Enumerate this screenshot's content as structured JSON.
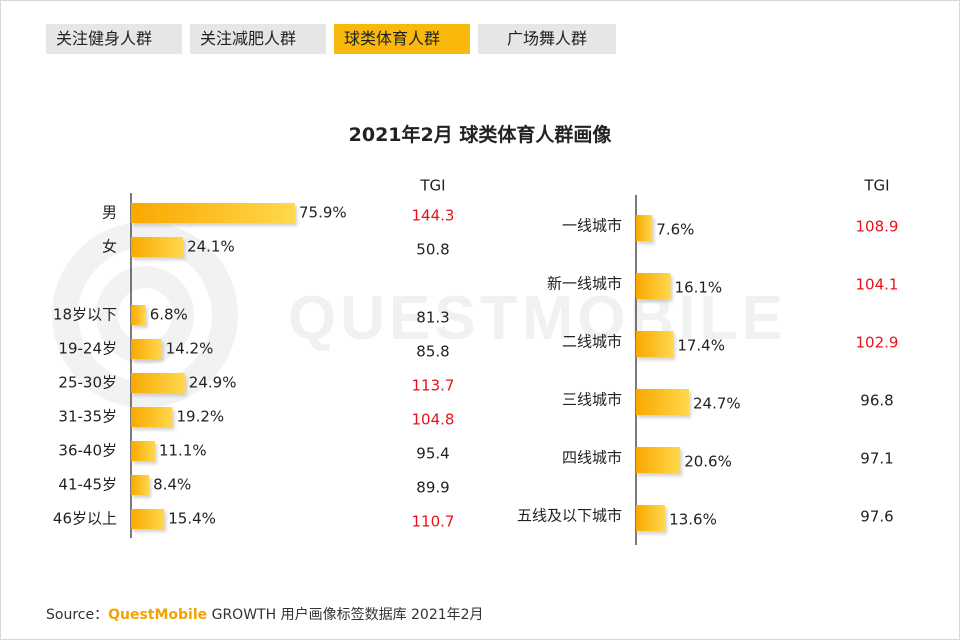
{
  "tabs": [
    {
      "label": "关注健身人群",
      "active": false
    },
    {
      "label": "关注减肥人群",
      "active": false
    },
    {
      "label": "球类体育人群",
      "active": true
    },
    {
      "label": "广场舞人群",
      "active": false
    }
  ],
  "title": "2021年2月 球类体育人群画像",
  "watermark": "QUESTMOBILE",
  "source": {
    "prefix": "Source：",
    "brand": "QuestMobile",
    "text": " GROWTH 用户画像标签数据库 2021年2月"
  },
  "colors": {
    "bar_start": "#f9a800",
    "bar_end": "#ffd84d",
    "tgi_high": "#e8131a",
    "tgi_normal": "#222222",
    "tab_active": "#f9b90c"
  },
  "chart_data": [
    {
      "type": "bar",
      "orientation": "horizontal",
      "tgi_header": "TGI",
      "groups": [
        {
          "categories": [
            "男",
            "女"
          ],
          "values": [
            75.9,
            24.1
          ],
          "labels": [
            "75.9%",
            "24.1%"
          ],
          "tgi": [
            144.3,
            50.8
          ]
        },
        {
          "categories": [
            "18岁以下",
            "19-24岁",
            "25-30岁",
            "31-35岁",
            "36-40岁",
            "41-45岁",
            "46岁以上"
          ],
          "values": [
            6.8,
            14.2,
            24.9,
            19.2,
            11.1,
            8.4,
            15.4
          ],
          "labels": [
            "6.8%",
            "14.2%",
            "24.9%",
            "19.2%",
            "11.1%",
            "8.4%",
            "15.4%"
          ],
          "tgi": [
            81.3,
            85.8,
            113.7,
            104.8,
            95.4,
            89.9,
            110.7
          ]
        }
      ],
      "tgi_highlight_threshold": 100,
      "unit": "%"
    },
    {
      "type": "bar",
      "orientation": "horizontal",
      "tgi_header": "TGI",
      "categories": [
        "一线城市",
        "新一线城市",
        "二线城市",
        "三线城市",
        "四线城市",
        "五线及以下城市"
      ],
      "values": [
        7.6,
        16.1,
        17.4,
        24.7,
        20.6,
        13.6
      ],
      "labels": [
        "7.6%",
        "16.1%",
        "17.4%",
        "24.7%",
        "20.6%",
        "13.6%"
      ],
      "tgi": [
        108.9,
        104.1,
        102.9,
        96.8,
        97.1,
        97.6
      ],
      "tgi_highlight_threshold": 100,
      "unit": "%"
    }
  ]
}
